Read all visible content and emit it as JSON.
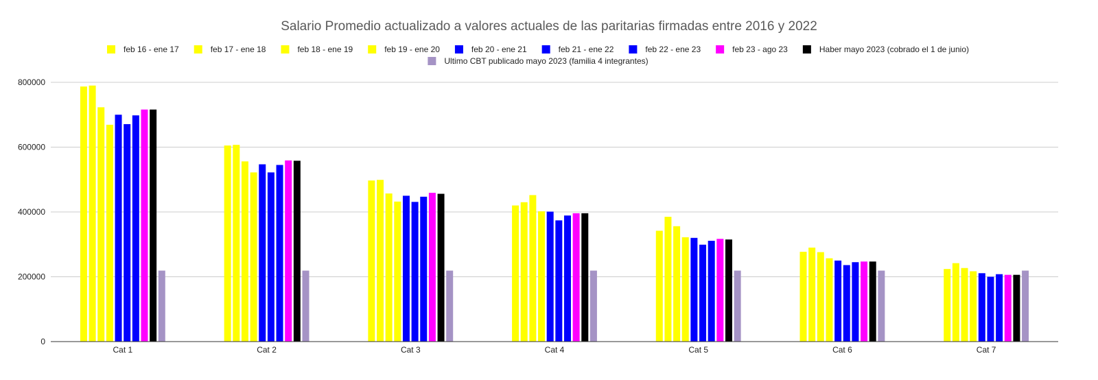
{
  "chart_data": {
    "type": "bar",
    "title": "Salario Promedio actualizado a valores actuales de las paritarias firmadas entre 2016 y 2022",
    "xlabel": "",
    "ylabel": "",
    "categories": [
      "Cat 1",
      "Cat 2",
      "Cat 3",
      "Cat 4",
      "Cat 5",
      "Cat 6",
      "Cat 7"
    ],
    "ylim": [
      0,
      800000
    ],
    "yticks": [
      "0",
      "200000",
      "400000",
      "600000",
      "800000"
    ],
    "grid": true,
    "legend_position": "top",
    "series": [
      {
        "name": "feb 16 - ene 17",
        "color": "#ffff00",
        "values": [
          787000,
          605000,
          497000,
          420000,
          342000,
          277000,
          224000
        ]
      },
      {
        "name": "feb 17 - ene 18",
        "color": "#ffff00",
        "values": [
          790000,
          607000,
          499000,
          430000,
          385000,
          290000,
          242000
        ]
      },
      {
        "name": "feb 18 - ene 19",
        "color": "#ffff00",
        "values": [
          723000,
          556000,
          457000,
          452000,
          356000,
          276000,
          227000
        ]
      },
      {
        "name": "feb 19 - ene 20",
        "color": "#ffff00",
        "values": [
          669000,
          522000,
          432000,
          402000,
          322000,
          257000,
          217000
        ]
      },
      {
        "name": "feb 20 - ene 21",
        "color": "#0000ff",
        "values": [
          700000,
          547000,
          450000,
          401000,
          320000,
          250000,
          211000
        ]
      },
      {
        "name": "feb 21 - ene 22",
        "color": "#0000ff",
        "values": [
          671000,
          522000,
          431000,
          374000,
          299000,
          236000,
          200000
        ]
      },
      {
        "name": "feb 22 - ene 23",
        "color": "#0000ff",
        "values": [
          698000,
          545000,
          447000,
          389000,
          311000,
          245000,
          208000
        ]
      },
      {
        "name": "feb 23 - ago 23",
        "color": "#ff00ff",
        "values": [
          716000,
          559000,
          459000,
          396000,
          317000,
          247000,
          206000
        ]
      },
      {
        "name": "Haber mayo 2023 (cobrado el 1 de junio)",
        "color": "#000000",
        "values": [
          716000,
          558000,
          456000,
          396000,
          315000,
          247000,
          206000
        ]
      },
      {
        "name": "Ultimo CBT publicado mayo 2023 (familia 4 integrantes)",
        "color": "#a593c5",
        "values": [
          219000,
          219000,
          219000,
          219000,
          219000,
          219000,
          219000
        ]
      }
    ]
  }
}
